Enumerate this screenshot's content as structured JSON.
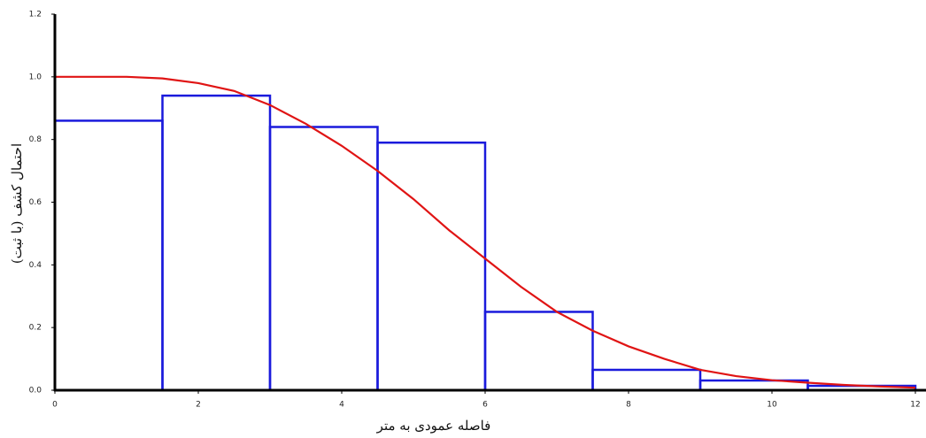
{
  "chart_data": {
    "type": "histogram",
    "xlabel": "فاصله عمودی به متر",
    "ylabel": "احتمال کشف (با ثبت)",
    "bins": [
      0,
      1.5,
      3,
      4.5,
      6,
      7.5,
      9,
      10.5,
      12
    ],
    "values": [
      0.86,
      0.94,
      0.84,
      0.79,
      0.25,
      0.065,
      0.031,
      0.014
    ],
    "color": "#1a1adc",
    "curve": {
      "color": "#e01414",
      "x": [
        0,
        0.5,
        1,
        1.5,
        2,
        2.5,
        3,
        3.5,
        4,
        4.5,
        5,
        5.5,
        6,
        6.5,
        7,
        7.5,
        8,
        8.5,
        9,
        9.5,
        10,
        10.5,
        11,
        11.5,
        12
      ],
      "values": [
        1.0,
        1.0,
        1.0,
        0.995,
        0.98,
        0.955,
        0.91,
        0.85,
        0.78,
        0.7,
        0.61,
        0.51,
        0.42,
        0.33,
        0.25,
        0.19,
        0.14,
        0.1,
        0.065,
        0.045,
        0.032,
        0.024,
        0.017,
        0.012,
        0.008
      ]
    },
    "xlim": [
      0,
      12
    ],
    "ylim": [
      0,
      1.2
    ],
    "xticks": [
      0,
      2,
      4,
      6,
      8,
      10,
      12
    ],
    "yticks": [
      {
        "value": 0,
        "label": "0.0"
      },
      0.2,
      0.4,
      0.6,
      0.8,
      {
        "value": 1,
        "label": "1.0"
      },
      1.2
    ]
  }
}
